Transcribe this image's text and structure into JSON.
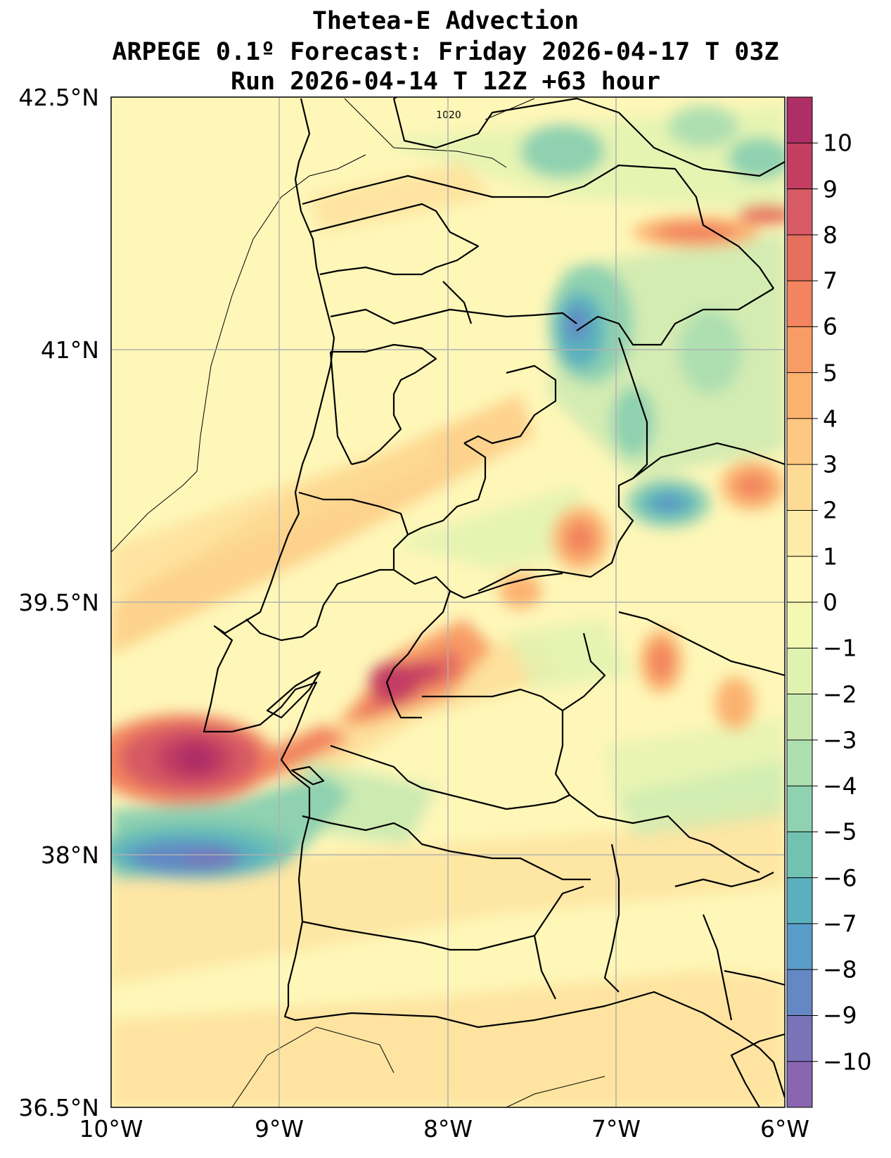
{
  "titles": {
    "line1": "Thetea-E Advection",
    "line2": "ARPEGE 0.1º Forecast: Friday 2026-04-17 T 03Z",
    "line3": "Run 2026-04-14 T 12Z +63 hour"
  },
  "axes": {
    "lat_labels": [
      "42.5°N",
      "41°N",
      "39.5°N",
      "38°N",
      "36.5°N"
    ],
    "lon_labels": [
      "10°W",
      "9°W",
      "8°W",
      "7°W",
      "6°W"
    ]
  },
  "isobar_label": "1020",
  "colorbar": {
    "labels": [
      "10",
      "9",
      "8",
      "7",
      "6",
      "5",
      "4",
      "3",
      "2",
      "1",
      "0",
      "−1",
      "−2",
      "−3",
      "−4",
      "−5",
      "−6",
      "−7",
      "−8",
      "−9",
      "−10"
    ],
    "colors": [
      "#ae2f66",
      "#c43e62",
      "#d75a64",
      "#e76f5e",
      "#f2845f",
      "#f89c66",
      "#fbb26f",
      "#fdc881",
      "#fddb95",
      "#feeba8",
      "#fef7b8",
      "#f3f9b3",
      "#e0f2b0",
      "#c8e9b0",
      "#aedfb0",
      "#8fd1b0",
      "#72c2b2",
      "#5ab1bd",
      "#5a9cc9",
      "#6488c4",
      "#7a73b8",
      "#8a66b0"
    ]
  }
}
